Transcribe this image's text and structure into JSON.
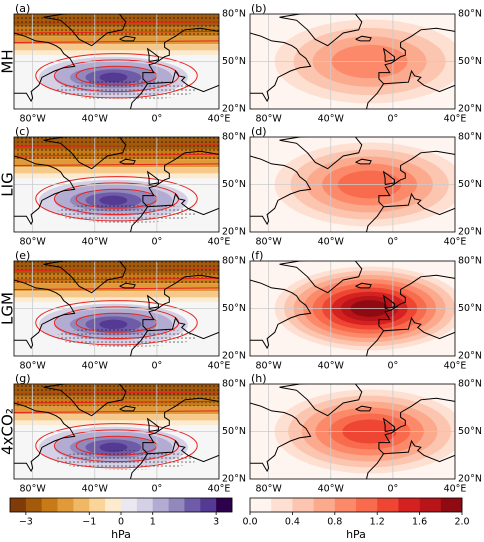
{
  "rows": [
    {
      "label": "MH",
      "left": "(a)",
      "right": "(b)"
    },
    {
      "label": "LIG",
      "left": "(c)",
      "right": "(d)"
    },
    {
      "label": "LGM",
      "left": "(e)",
      "right": "(f)"
    },
    {
      "label": "4xCO₂",
      "left": "(g)",
      "right": "(h)"
    }
  ],
  "map_axes": {
    "xlim": [
      -92,
      40
    ],
    "ylim": [
      20,
      80
    ],
    "xticks": [
      {
        "value": -80,
        "label": "80°W"
      },
      {
        "value": -40,
        "label": "40°W"
      },
      {
        "value": 0,
        "label": "0°"
      },
      {
        "value": 40,
        "label": "40°E"
      }
    ],
    "yticks": [
      {
        "value": 20,
        "label": "20°N"
      },
      {
        "value": 50,
        "label": "50°N"
      },
      {
        "value": 80,
        "label": "80°N"
      }
    ]
  },
  "colorbars": [
    {
      "unit": "hPa",
      "levels": [
        -3.5,
        -3,
        -2.5,
        -2,
        -1.5,
        -1,
        -0.5,
        0,
        0.5,
        1,
        1.5,
        2,
        2.5,
        3,
        3.5
      ],
      "colors": [
        "#7f3b08",
        "#a35a0b",
        "#c77a15",
        "#e09a3a",
        "#f0b865",
        "#fbd49a",
        "#fdebd0",
        "#ebe8f2",
        "#d4d0e6",
        "#b2abd2",
        "#9288bc",
        "#6f5ca8",
        "#543a93",
        "#2d004b"
      ],
      "ticks": [
        {
          "value": -3,
          "label": "−3"
        },
        {
          "value": -1,
          "label": "−1"
        },
        0,
        1,
        3
      ]
    },
    {
      "unit": "hPa",
      "levels": [
        0,
        0.2,
        0.4,
        0.6,
        0.8,
        1.0,
        1.2,
        1.4,
        1.6,
        1.8,
        2.0
      ],
      "colors": [
        "#fff5f0",
        "#fee0d2",
        "#fcc5b0",
        "#fcaa8e",
        "#fc8a6a",
        "#f86b4d",
        "#ef4533",
        "#d52221",
        "#b91419",
        "#8f0a12"
      ],
      "ticks": [
        {
          "value": 0,
          "label": "0.0"
        },
        {
          "value": 0.4,
          "label": "0.4"
        },
        {
          "value": 0.8,
          "label": "0.8"
        },
        {
          "value": 1.2,
          "label": "1.2"
        },
        {
          "value": 1.6,
          "label": "1.6"
        },
        {
          "value": 2.0,
          "label": "2.0"
        }
      ]
    }
  ]
}
